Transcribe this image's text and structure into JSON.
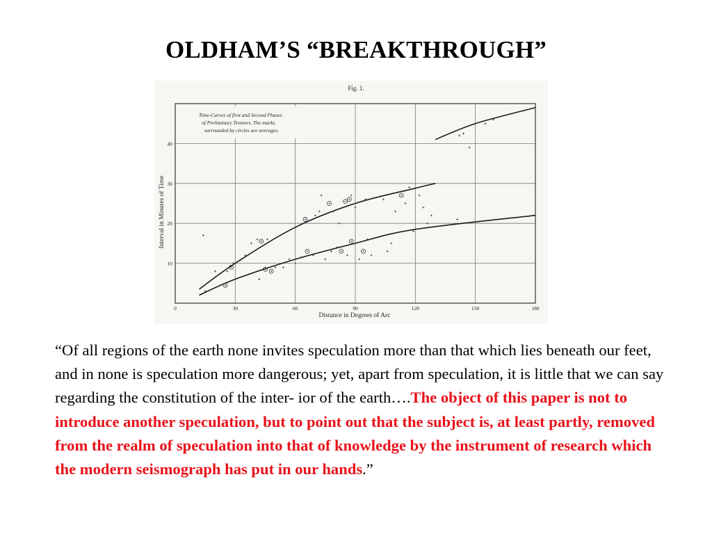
{
  "slide": {
    "title": "OLDHAM’S  “BREAKTHROUGH”"
  },
  "quote": {
    "open_mark": "“",
    "plain_text": "Of all regions of the earth none invites speculation more than that which lies beneath our feet, and in none is speculation more dangerous; yet, apart from speculation, it is little that we can say regarding the constitution of the inter- ior of the earth….",
    "emphasized_text": "The object of this paper is not to introduce another speculation, but to point out that the subject is, at least partly, removed from the realm of speculation into that of knowledge by the instrument of research which the modern seismograph has put in our hands",
    "close_mark": ".”",
    "emphasis_color": "#e8121b"
  },
  "chart_data": {
    "type": "scatter",
    "title": "Fig. 1.",
    "legend_text": [
      "Time-Curves of first and Second Phases",
      "of Preliminary Tremors.   The marks",
      "surrounded by circles are averages."
    ],
    "legend_placement": "top-left",
    "xlabel": "Distance  in  Degrees  of  Arc",
    "ylabel": "Interval  in  Minutes  of  Time",
    "xlim": [
      0,
      180
    ],
    "ylim": [
      0,
      50
    ],
    "x_ticks": [
      0,
      30,
      60,
      90,
      120,
      150,
      180
    ],
    "y_ticks": [
      10,
      20,
      30,
      40
    ],
    "grid": true,
    "curves": [
      {
        "name": "first phase",
        "x": [
          12,
          30,
          60,
          90,
          120,
          180
        ],
        "y": [
          2,
          6,
          11,
          15,
          18.5,
          22
        ]
      },
      {
        "name": "second phase",
        "x": [
          12,
          30,
          60,
          90,
          120,
          130
        ],
        "y": [
          3.5,
          10,
          19,
          25,
          28.8,
          30
        ]
      },
      {
        "name": "second phase (extension)",
        "x": [
          130,
          150,
          180
        ],
        "y": [
          41,
          45,
          49
        ]
      }
    ],
    "averages": [
      {
        "x": 25,
        "y": 4.5
      },
      {
        "x": 28,
        "y": 9
      },
      {
        "x": 43,
        "y": 15.5
      },
      {
        "x": 45,
        "y": 8.5
      },
      {
        "x": 48,
        "y": 8
      },
      {
        "x": 65,
        "y": 21
      },
      {
        "x": 66,
        "y": 13
      },
      {
        "x": 77,
        "y": 25
      },
      {
        "x": 83,
        "y": 13
      },
      {
        "x": 85,
        "y": 25.5
      },
      {
        "x": 87,
        "y": 26
      },
      {
        "x": 88,
        "y": 15.5
      },
      {
        "x": 94,
        "y": 13
      },
      {
        "x": 113,
        "y": 27
      }
    ],
    "observations": [
      {
        "x": 14,
        "y": 17
      },
      {
        "x": 15,
        "y": 3
      },
      {
        "x": 20,
        "y": 8
      },
      {
        "x": 26,
        "y": 8
      },
      {
        "x": 29,
        "y": 10
      },
      {
        "x": 33,
        "y": 11
      },
      {
        "x": 35,
        "y": 12
      },
      {
        "x": 38,
        "y": 15
      },
      {
        "x": 41,
        "y": 16
      },
      {
        "x": 42,
        "y": 6
      },
      {
        "x": 46,
        "y": 16
      },
      {
        "x": 50,
        "y": 9
      },
      {
        "x": 54,
        "y": 9
      },
      {
        "x": 57,
        "y": 11
      },
      {
        "x": 60,
        "y": 10
      },
      {
        "x": 63,
        "y": 11.5
      },
      {
        "x": 69,
        "y": 12
      },
      {
        "x": 70,
        "y": 22
      },
      {
        "x": 72,
        "y": 23
      },
      {
        "x": 73,
        "y": 27
      },
      {
        "x": 75,
        "y": 11
      },
      {
        "x": 78,
        "y": 13
      },
      {
        "x": 79,
        "y": 23
      },
      {
        "x": 81,
        "y": 14
      },
      {
        "x": 82,
        "y": 20
      },
      {
        "x": 86,
        "y": 12
      },
      {
        "x": 88,
        "y": 27
      },
      {
        "x": 90,
        "y": 24
      },
      {
        "x": 92,
        "y": 11
      },
      {
        "x": 95,
        "y": 26
      },
      {
        "x": 96,
        "y": 16
      },
      {
        "x": 98,
        "y": 12
      },
      {
        "x": 104,
        "y": 26
      },
      {
        "x": 106,
        "y": 13
      },
      {
        "x": 108,
        "y": 15
      },
      {
        "x": 110,
        "y": 23
      },
      {
        "x": 114,
        "y": 28
      },
      {
        "x": 115,
        "y": 25
      },
      {
        "x": 117,
        "y": 29
      },
      {
        "x": 119,
        "y": 18
      },
      {
        "x": 122,
        "y": 27
      },
      {
        "x": 124,
        "y": 24
      },
      {
        "x": 126,
        "y": 20
      },
      {
        "x": 128,
        "y": 22
      },
      {
        "x": 141,
        "y": 21
      },
      {
        "x": 142,
        "y": 42
      },
      {
        "x": 144,
        "y": 42.5
      },
      {
        "x": 147,
        "y": 39
      },
      {
        "x": 155,
        "y": 45
      },
      {
        "x": 159,
        "y": 46
      }
    ]
  }
}
